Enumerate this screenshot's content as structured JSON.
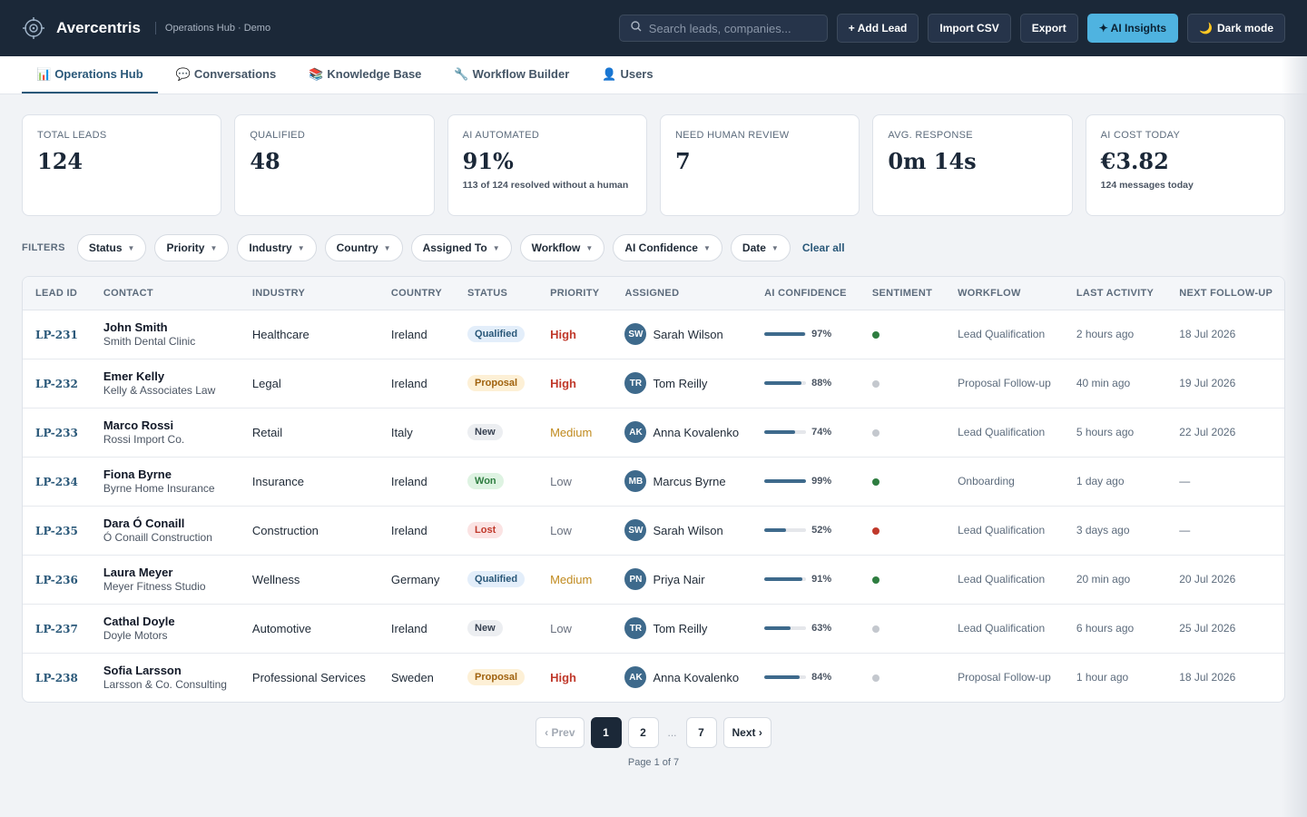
{
  "header": {
    "brand": "Avercentris",
    "subtitle": "Operations Hub · Demo",
    "search_placeholder": "Search leads, companies...",
    "buttons": {
      "add_lead": "+ Add Lead",
      "import_csv": "Import CSV",
      "export": "Export",
      "ai_insights": "✦ AI Insights",
      "dark_mode": "Dark mode"
    },
    "accent_color": "#4fb3e0"
  },
  "tabs": [
    {
      "label": "Operations Hub",
      "icon": "📊",
      "active": true
    },
    {
      "label": "Conversations",
      "icon": "💬",
      "active": false
    },
    {
      "label": "Knowledge Base",
      "icon": "📚",
      "active": false
    },
    {
      "label": "Workflow Builder",
      "icon": "🔧",
      "active": false
    },
    {
      "label": "Users",
      "icon": "👤",
      "active": false
    }
  ],
  "kpis": [
    {
      "label": "TOTAL LEADS",
      "value": "124",
      "note": ""
    },
    {
      "label": "QUALIFIED",
      "value": "48",
      "note": ""
    },
    {
      "label": "AI AUTOMATED",
      "value": "91%",
      "note": "113 of 124 resolved without a human"
    },
    {
      "label": "NEED HUMAN REVIEW",
      "value": "7",
      "note": ""
    },
    {
      "label": "AVG. RESPONSE",
      "value": "0m 14s",
      "note": ""
    },
    {
      "label": "AI COST TODAY",
      "value": "€3.82",
      "note": "124 messages today"
    }
  ],
  "filters": {
    "label": "FILTERS",
    "chips": [
      "Status",
      "Priority",
      "Industry",
      "Country",
      "Assigned To",
      "Workflow",
      "AI Confidence",
      "Date"
    ],
    "clear_all": "Clear all"
  },
  "table": {
    "columns": [
      "LEAD ID",
      "CONTACT",
      "INDUSTRY",
      "COUNTRY",
      "STATUS",
      "PRIORITY",
      "ASSIGNED",
      "AI CONFIDENCE",
      "SENTIMENT",
      "WORKFLOW",
      "LAST ACTIVITY",
      "NEXT FOLLOW-UP"
    ],
    "rows": [
      {
        "id": "LP-231",
        "name": "John Smith",
        "company": "Smith Dental Clinic",
        "industry": "Healthcare",
        "country": "Ireland",
        "status": "Qualified",
        "priority": "High",
        "initials": "SW",
        "assigned": "Sarah Wilson",
        "confidence": 97,
        "confidence_label": "97%",
        "sentiment": "positive",
        "workflow": "Lead Qualification",
        "last_activity": "2 hours ago",
        "next_followup": "18 Jul 2026"
      },
      {
        "id": "LP-232",
        "name": "Emer Kelly",
        "company": "Kelly & Associates Law",
        "industry": "Legal",
        "country": "Ireland",
        "status": "Proposal",
        "priority": "High",
        "initials": "TR",
        "assigned": "Tom Reilly",
        "confidence": 88,
        "confidence_label": "88%",
        "sentiment": "neutral",
        "workflow": "Proposal Follow-up",
        "last_activity": "40 min ago",
        "next_followup": "19 Jul 2026"
      },
      {
        "id": "LP-233",
        "name": "Marco Rossi",
        "company": "Rossi Import Co.",
        "industry": "Retail",
        "country": "Italy",
        "status": "New",
        "priority": "Medium",
        "initials": "AK",
        "assigned": "Anna Kovalenko",
        "confidence": 74,
        "confidence_label": "74%",
        "sentiment": "neutral",
        "workflow": "Lead Qualification",
        "last_activity": "5 hours ago",
        "next_followup": "22 Jul 2026"
      },
      {
        "id": "LP-234",
        "name": "Fiona Byrne",
        "company": "Byrne Home Insurance",
        "industry": "Insurance",
        "country": "Ireland",
        "status": "Won",
        "priority": "Low",
        "initials": "MB",
        "assigned": "Marcus Byrne",
        "confidence": 99,
        "confidence_label": "99%",
        "sentiment": "positive",
        "workflow": "Onboarding",
        "last_activity": "1 day ago",
        "next_followup": "—"
      },
      {
        "id": "LP-235",
        "name": "Dara Ó Conaill",
        "company": "Ó Conaill Construction",
        "industry": "Construction",
        "country": "Ireland",
        "status": "Lost",
        "priority": "Low",
        "initials": "SW",
        "assigned": "Sarah Wilson",
        "confidence": 52,
        "confidence_label": "52%",
        "sentiment": "negative",
        "workflow": "Lead Qualification",
        "last_activity": "3 days ago",
        "next_followup": "—"
      },
      {
        "id": "LP-236",
        "name": "Laura Meyer",
        "company": "Meyer Fitness Studio",
        "industry": "Wellness",
        "country": "Germany",
        "status": "Qualified",
        "priority": "Medium",
        "initials": "PN",
        "assigned": "Priya Nair",
        "confidence": 91,
        "confidence_label": "91%",
        "sentiment": "positive",
        "workflow": "Lead Qualification",
        "last_activity": "20 min ago",
        "next_followup": "20 Jul 2026"
      },
      {
        "id": "LP-237",
        "name": "Cathal Doyle",
        "company": "Doyle Motors",
        "industry": "Automotive",
        "country": "Ireland",
        "status": "New",
        "priority": "Low",
        "initials": "TR",
        "assigned": "Tom Reilly",
        "confidence": 63,
        "confidence_label": "63%",
        "sentiment": "neutral",
        "workflow": "Lead Qualification",
        "last_activity": "6 hours ago",
        "next_followup": "25 Jul 2026"
      },
      {
        "id": "LP-238",
        "name": "Sofia Larsson",
        "company": "Larsson & Co. Consulting",
        "industry": "Professional Services",
        "country": "Sweden",
        "status": "Proposal",
        "priority": "High",
        "initials": "AK",
        "assigned": "Anna Kovalenko",
        "confidence": 84,
        "confidence_label": "84%",
        "sentiment": "neutral",
        "workflow": "Proposal Follow-up",
        "last_activity": "1 hour ago",
        "next_followup": "18 Jul 2026"
      }
    ]
  },
  "pagination": {
    "prev": "‹ Prev",
    "pages": [
      "1",
      "2"
    ],
    "ellipsis": "...",
    "last": "7",
    "next": "Next ›",
    "info": "Page 1 of 7"
  }
}
